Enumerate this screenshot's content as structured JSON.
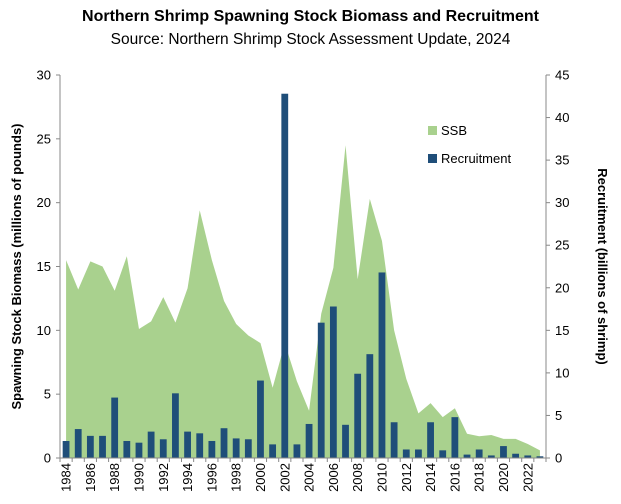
{
  "chart_data": {
    "type": "bar",
    "title": "Northern Shrimp Spawning Stock Biomass and Recruitment",
    "subtitle": "Source: Northern Shrimp Stock Assessment Update, 2024",
    "xlabel": "",
    "ylabel": "Spawning Stock Biomass (millions of pounds)",
    "y2label": "Recruitment (billions of shrimp)",
    "ylim": [
      0,
      30
    ],
    "y2lim": [
      0,
      45
    ],
    "y_ticks": [
      "0",
      "5",
      "10",
      "15",
      "20",
      "25",
      "30"
    ],
    "y2_ticks": [
      "0",
      "5",
      "10",
      "15",
      "20",
      "25",
      "30",
      "35",
      "40",
      "45"
    ],
    "x_ticks": [
      "1984",
      "1986",
      "1988",
      "1990",
      "1992",
      "1994",
      "1996",
      "1998",
      "2000",
      "2002",
      "2004",
      "2006",
      "2008",
      "2010",
      "2012",
      "2014",
      "2016",
      "2018",
      "2020",
      "2022"
    ],
    "grid": false,
    "legend_position": "top-right",
    "x": [
      1984,
      1985,
      1986,
      1987,
      1988,
      1989,
      1990,
      1991,
      1992,
      1993,
      1994,
      1995,
      1996,
      1997,
      1998,
      1999,
      2000,
      2001,
      2002,
      2003,
      2004,
      2005,
      2006,
      2007,
      2008,
      2009,
      2010,
      2011,
      2012,
      2013,
      2014,
      2015,
      2016,
      2017,
      2018,
      2019,
      2020,
      2021,
      2022,
      2023
    ],
    "series": [
      {
        "name": "SSB",
        "type": "area",
        "axis": "left",
        "color": "#a9d18e",
        "values": [
          15.5,
          13.2,
          15.4,
          15.0,
          13.1,
          15.8,
          10.1,
          10.7,
          12.6,
          10.6,
          13.3,
          19.4,
          15.5,
          12.3,
          10.5,
          9.6,
          9.0,
          5.5,
          9.0,
          6.0,
          3.7,
          11.3,
          14.9,
          24.5,
          14.0,
          20.3,
          17.0,
          10.0,
          6.2,
          3.5,
          4.3,
          3.2,
          3.9,
          1.9,
          1.7,
          1.8,
          1.5,
          1.5,
          1.1,
          0.6
        ]
      },
      {
        "name": "Recruitment",
        "type": "bar",
        "axis": "right",
        "color": "#1f4e79",
        "values": [
          2.0,
          3.4,
          2.6,
          2.6,
          7.1,
          2.0,
          1.8,
          3.1,
          2.2,
          7.6,
          3.1,
          2.9,
          2.0,
          3.5,
          2.3,
          2.2,
          9.1,
          1.6,
          42.8,
          1.6,
          4.0,
          15.9,
          17.8,
          3.9,
          9.9,
          12.2,
          21.8,
          4.2,
          1.0,
          1.0,
          4.2,
          0.9,
          4.8,
          0.4,
          1.0,
          0.3,
          1.4,
          0.5,
          0.3,
          0.2
        ]
      }
    ]
  }
}
